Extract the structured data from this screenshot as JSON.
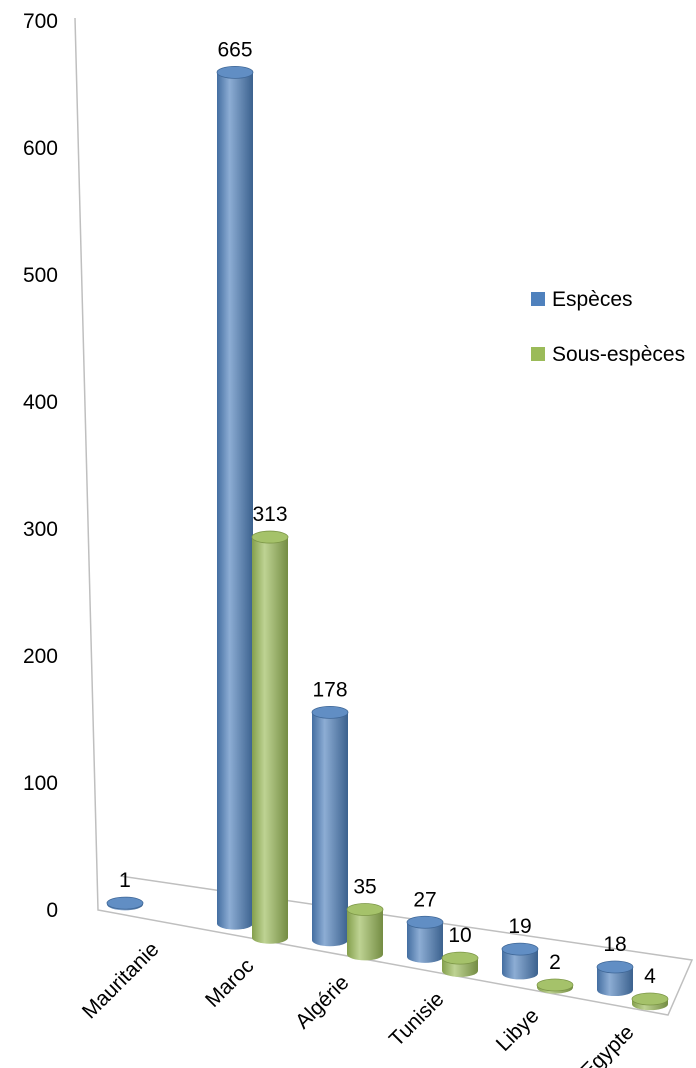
{
  "chart_data": {
    "type": "bar",
    "style": "3d-cylinder",
    "categories": [
      "Mauritanie",
      "Maroc",
      "Algérie",
      "Tunisie",
      "Libye",
      "Egypte"
    ],
    "series": [
      {
        "name": "Espèces",
        "values": [
          1,
          665,
          178,
          27,
          19,
          18
        ],
        "color": "#4f81bd"
      },
      {
        "name": "Sous-espèces",
        "values": [
          0,
          313,
          35,
          10,
          2,
          4
        ],
        "color": "#9bbb59"
      }
    ],
    "data_labels": [
      [
        "1",
        "665",
        "178",
        "27",
        "19",
        "18"
      ],
      [
        "",
        "313",
        "35",
        "10",
        "2",
        "4"
      ]
    ],
    "y_ticks": [
      "0",
      "100",
      "200",
      "300",
      "400",
      "500",
      "600",
      "700"
    ],
    "ylim": [
      0,
      700
    ],
    "grid": false,
    "legend_position": "right"
  }
}
